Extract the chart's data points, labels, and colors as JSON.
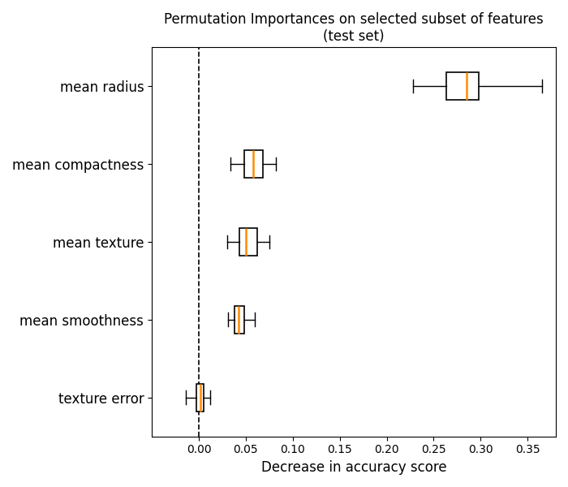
{
  "title": "Permutation Importances on selected subset of features\n(test set)",
  "xlabel": "Decrease in accuracy score",
  "features": [
    "mean radius",
    "mean compactness",
    "mean texture",
    "mean smoothness",
    "texture error"
  ],
  "box_data": {
    "mean radius": {
      "whislo": 0.228,
      "q1": 0.263,
      "med": 0.285,
      "q3": 0.298,
      "whishi": 0.365
    },
    "mean compactness": {
      "whislo": 0.034,
      "q1": 0.048,
      "med": 0.058,
      "q3": 0.068,
      "whishi": 0.082
    },
    "mean texture": {
      "whislo": 0.03,
      "q1": 0.043,
      "med": 0.05,
      "q3": 0.062,
      "whishi": 0.075
    },
    "mean smoothness": {
      "whislo": 0.031,
      "q1": 0.038,
      "med": 0.042,
      "q3": 0.048,
      "whishi": 0.06
    },
    "texture error": {
      "whislo": -0.014,
      "q1": -0.003,
      "med": 0.002,
      "q3": 0.005,
      "whishi": 0.012
    }
  },
  "median_color": "#ff8c00",
  "box_color": "white",
  "box_edge_color": "black",
  "whisker_color": "black",
  "cap_color": "black",
  "vline_x": 0.0,
  "xlim": [
    -0.05,
    0.38
  ],
  "box_width": 0.35,
  "figsize": [
    7.0,
    6.0
  ],
  "dpi": 100,
  "title_fontsize": 12,
  "label_fontsize": 12
}
